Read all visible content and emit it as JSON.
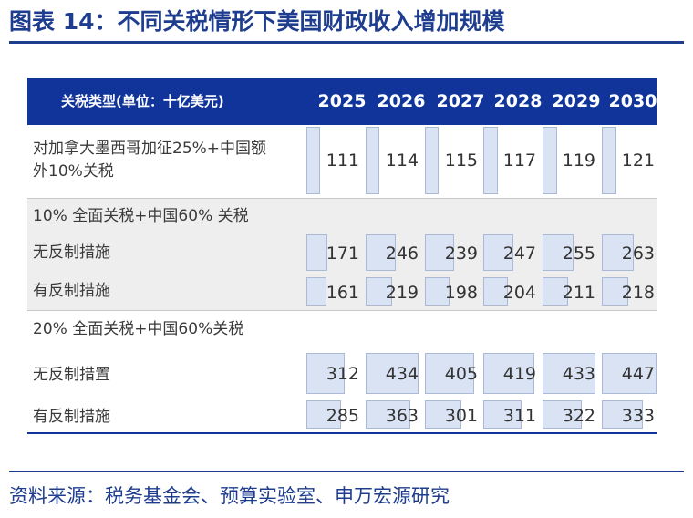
{
  "title": "图表 14：不同关税情形下美国财政收入增加规模",
  "table": {
    "header_label": "关税类型(单位：十亿美元)",
    "years": [
      "2025",
      "2026",
      "2027",
      "2028",
      "2029",
      "2030"
    ],
    "row1": {
      "label_line1": "对加拿大墨西哥加征25%+中国额",
      "label_line2": "外10%关税",
      "values": [
        "111",
        "114",
        "115",
        "117",
        "119",
        "121"
      ]
    },
    "section2": {
      "label": "10% 全面关税+中国60% 关税",
      "rows": [
        {
          "label": "无反制措施",
          "values": [
            "171",
            "246",
            "239",
            "247",
            "255",
            "263"
          ]
        },
        {
          "label": "有反制措施",
          "values": [
            "161",
            "219",
            "198",
            "204",
            "211",
            "218"
          ]
        }
      ]
    },
    "section3": {
      "label": "20% 全面关税+中国60%关税",
      "rows": [
        {
          "label": "无反制措置",
          "values": [
            "312",
            "434",
            "405",
            "419",
            "433",
            "447"
          ]
        },
        {
          "label": "有反制措施",
          "values": [
            "285",
            "363",
            "301",
            "311",
            "322",
            "333"
          ]
        }
      ]
    }
  },
  "source": "资料来源：税务基金会、预算实验室、申万宏源研究",
  "colors": {
    "brand": "#1f3d8f",
    "header_bg": "#10349a",
    "databar_fill": "#d9e3f3",
    "databar_border": "#a9b9d6"
  }
}
